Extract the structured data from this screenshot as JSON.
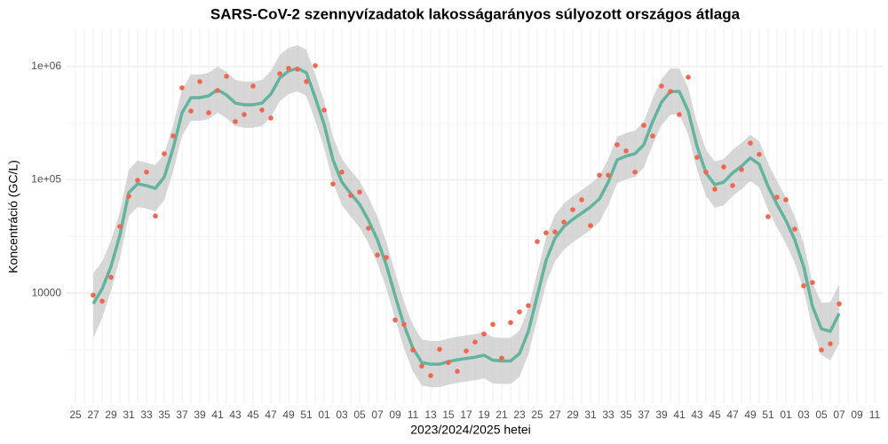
{
  "chart_data": {
    "type": "line",
    "title": "SARS-CoV-2 szennyvízadatok lakosságarányos súlyozott országos átlaga",
    "xlabel": "2023/2024/2025 hetei",
    "ylabel": "Koncentráció (GC/L)",
    "log_y": true,
    "grid": true,
    "categories": [
      "25",
      null,
      "27",
      null,
      "29",
      null,
      "31",
      null,
      "33",
      null,
      "35",
      null,
      "37",
      null,
      "39",
      null,
      "41",
      null,
      "43",
      null,
      "45",
      null,
      "47",
      null,
      "49",
      null,
      "51",
      null,
      "01",
      null,
      "03",
      null,
      "05",
      null,
      "07",
      null,
      "09",
      null,
      "11",
      null,
      "13",
      null,
      "15",
      null,
      "17",
      null,
      "19",
      null,
      "21",
      null,
      "23",
      null,
      "25",
      null,
      "27",
      null,
      "29",
      null,
      "31",
      null,
      "33",
      null,
      "35",
      null,
      "37",
      null,
      "39",
      null,
      "41",
      null,
      "43",
      null,
      "45",
      null,
      "47",
      null,
      "49",
      null,
      "51",
      null,
      "01",
      null,
      "03",
      null,
      "05",
      null,
      "07",
      null,
      "09",
      null,
      "11"
    ],
    "ylim": [
      1050,
      2170000
    ],
    "yticks": [
      {
        "value": 10000,
        "label": "10000"
      },
      {
        "value": 100000,
        "label": "1e+05"
      },
      {
        "value": 1000000,
        "label": "1e+06"
      }
    ],
    "minor_yticks": [
      3162.3,
      31622.8,
      316227.8
    ],
    "points": {
      "color": "#f0674f",
      "values": [
        null,
        null,
        9600,
        8500,
        13800,
        38700,
        71600,
        99000,
        117000,
        48000,
        170000,
        244000,
        649000,
        405000,
        736000,
        391000,
        614000,
        820000,
        327000,
        377000,
        672000,
        413000,
        351000,
        865000,
        964000,
        947000,
        736000,
        1018000,
        413000,
        92000,
        117000,
        73000,
        78000,
        37400,
        21700,
        20600,
        5800,
        5300,
        3150,
        2270,
        1870,
        3200,
        2440,
        2040,
        3090,
        3700,
        4360,
        5300,
        2670,
        5500,
        6840,
        7760,
        28500,
        34100,
        34700,
        42400,
        54600,
        66700,
        39500,
        110000,
        110000,
        204000,
        180000,
        117000,
        303000,
        244000,
        672000,
        602000,
        377000,
        805000,
        158000,
        117000,
        82800,
        130000,
        89000,
        123000,
        211000,
        168000,
        47300,
        70300,
        66700,
        36700,
        11600,
        12400,
        3150,
        3570,
        8050,
        null,
        null,
        null,
        null
      ]
    },
    "trend": {
      "color": "#62b49e",
      "values": [
        null,
        null,
        8050,
        10900,
        17200,
        32400,
        76900,
        92200,
        88900,
        84200,
        106000,
        190000,
        391000,
        531000,
        531000,
        551000,
        625000,
        561000,
        476000,
        460000,
        460000,
        476000,
        571000,
        791000,
        914000,
        964000,
        881000,
        531000,
        309000,
        150000,
        95500,
        75500,
        60800,
        43900,
        29600,
        17800,
        9460,
        5220,
        3270,
        2440,
        2360,
        2360,
        2490,
        2580,
        2650,
        2720,
        2830,
        2560,
        2520,
        2520,
        2930,
        4600,
        9460,
        19500,
        30600,
        38700,
        44800,
        50800,
        57700,
        67800,
        95500,
        150000,
        162000,
        170000,
        204000,
        327000,
        485000,
        602000,
        602000,
        405000,
        197000,
        115000,
        90600,
        95500,
        115000,
        132000,
        156000,
        137000,
        87300,
        60800,
        43900,
        29600,
        17200,
        7630,
        4850,
        4600,
        6610,
        null,
        null,
        null,
        null
      ]
    },
    "band": {
      "color": "#bdbdbd",
      "upper": [
        null,
        null,
        15000,
        19000,
        29000,
        51800,
        123000,
        148000,
        142000,
        135000,
        170000,
        304000,
        626000,
        850000,
        850000,
        882000,
        1000000,
        898000,
        762000,
        736000,
        736000,
        762000,
        914000,
        1266000,
        1462000,
        1542000,
        1410000,
        850000,
        494000,
        240000,
        153000,
        121000,
        97300,
        70200,
        47400,
        28500,
        15100,
        8350,
        5230,
        3900,
        3780,
        3780,
        3980,
        4130,
        4240,
        4350,
        4530,
        4100,
        4030,
        4030,
        4690,
        7360,
        15100,
        31200,
        49000,
        61900,
        71700,
        81300,
        92300,
        108000,
        153000,
        240000,
        259000,
        272000,
        326000,
        523000,
        776000,
        963000,
        963000,
        648000,
        315000,
        184000,
        145000,
        153000,
        184000,
        211000,
        250000,
        219000,
        140000,
        97300,
        70200,
        47400,
        27500,
        12200,
        8250,
        8300,
        12000,
        null,
        null,
        null,
        null
      ],
      "lower": [
        null,
        null,
        4000,
        6000,
        10500,
        20300,
        48100,
        57600,
        55600,
        52600,
        66300,
        119000,
        244000,
        332000,
        332000,
        344000,
        391000,
        351000,
        298000,
        288000,
        288000,
        298000,
        357000,
        494000,
        571000,
        603000,
        551000,
        332000,
        193000,
        93800,
        59700,
        47200,
        38000,
        27400,
        18500,
        11100,
        5910,
        3260,
        2040,
        1530,
        1480,
        1480,
        1560,
        1610,
        1660,
        1700,
        1770,
        1600,
        1580,
        1580,
        1830,
        2880,
        5910,
        12200,
        19100,
        24200,
        28000,
        31800,
        36100,
        42400,
        59700,
        93800,
        101000,
        106000,
        128000,
        204000,
        303000,
        376000,
        376000,
        253000,
        123000,
        71900,
        56600,
        59700,
        71900,
        82500,
        97500,
        85600,
        54600,
        38000,
        27400,
        18500,
        10800,
        4770,
        2850,
        2550,
        3600,
        null,
        null,
        null,
        null
      ]
    }
  }
}
